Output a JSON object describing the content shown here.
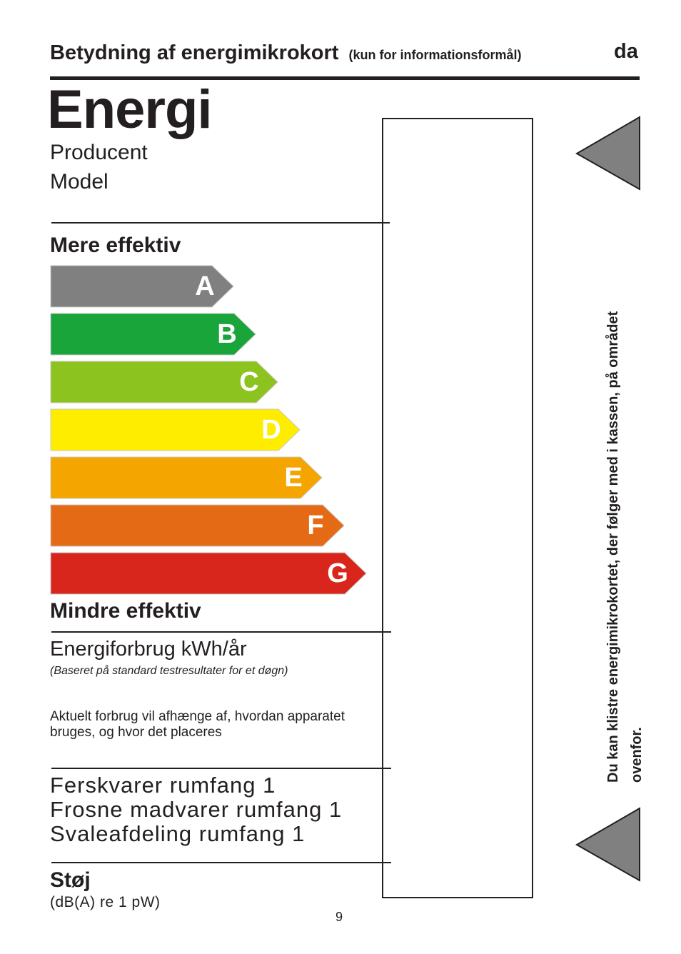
{
  "header": {
    "title": "Betydning af energimikrokort",
    "note": "(kun for informationsformål)",
    "lang": "da"
  },
  "label": {
    "heading": "Energi",
    "producer": "Producent",
    "model": "Model",
    "more_efficient": "Mere effektiv",
    "less_efficient": "Mindre effektiv",
    "classes": [
      {
        "letter": "A",
        "color": "#808080"
      },
      {
        "letter": "B",
        "color": "#1aa53b"
      },
      {
        "letter": "C",
        "color": "#8dc31e"
      },
      {
        "letter": "D",
        "color": "#ffed00"
      },
      {
        "letter": "E",
        "color": "#f4a500"
      },
      {
        "letter": "F",
        "color": "#e56a15"
      },
      {
        "letter": "G",
        "color": "#d9261c"
      }
    ],
    "consumption": "Energiforbrug kWh/år",
    "consumption_note": "(Baseret på standard testresultater for et døgn)",
    "actual_note": "Aktuelt forbrug vil afhænge af, hvordan apparatet bruges, og hvor det placeres",
    "volume_fresh": "Ferskvarer rumfang 1",
    "volume_frozen": "Frosne madvarer rumfang 1",
    "volume_cool": "Svaleafdeling rumfang 1",
    "noise_title": "Støj",
    "noise_unit": "(dB(A) re 1 pW)"
  },
  "side_note": {
    "line1": "Du kan klistre energimikrokortet, der følger med i kassen, på området",
    "line2": "ovenfor."
  },
  "arrow_color": "#808080",
  "page_number": "9"
}
